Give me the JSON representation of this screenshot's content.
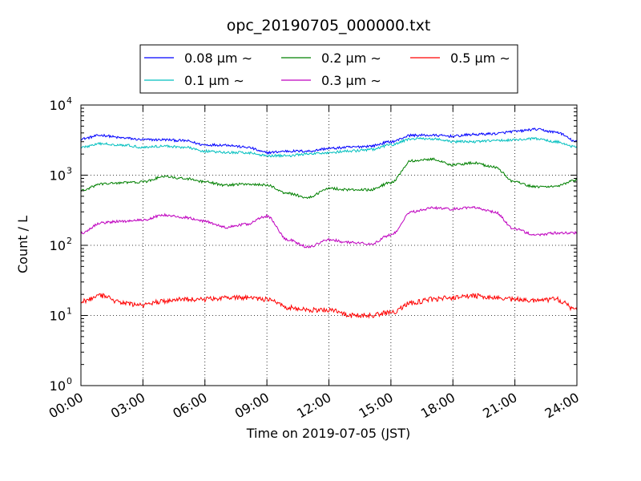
{
  "chart_data": {
    "type": "line",
    "title": "opc_20190705_000000.txt",
    "xlabel": "Time on 2019-07-05 (JST)",
    "ylabel": "Count / L",
    "yscale": "log",
    "ylim": [
      1,
      10000
    ],
    "grid": true,
    "legend_position": "top",
    "x_ticks": [
      "00:00",
      "03:00",
      "06:00",
      "09:00",
      "12:00",
      "15:00",
      "18:00",
      "21:00",
      "24:00"
    ],
    "y_ticks": [
      {
        "value": 1,
        "base": "10",
        "exp": "0"
      },
      {
        "value": 10,
        "base": "10",
        "exp": "1"
      },
      {
        "value": 100,
        "base": "10",
        "exp": "2"
      },
      {
        "value": 1000,
        "base": "10",
        "exp": "3"
      },
      {
        "value": 10000,
        "base": "10",
        "exp": "4"
      }
    ],
    "x_hours": [
      0,
      1,
      2,
      3,
      4,
      5,
      6,
      7,
      8,
      9,
      10,
      11,
      12,
      13,
      14,
      15,
      16,
      17,
      18,
      19,
      20,
      21,
      22,
      23,
      24
    ],
    "series": [
      {
        "name": "0.08 μm ∼",
        "color": "#0000ff",
        "values": [
          3300,
          3700,
          3400,
          3200,
          3200,
          3100,
          2700,
          2700,
          2500,
          2100,
          2200,
          2200,
          2400,
          2500,
          2600,
          3000,
          3700,
          3700,
          3600,
          3800,
          3900,
          4200,
          4500,
          4100,
          3000
        ]
      },
      {
        "name": "0.1 μm ∼",
        "color": "#00bfbf",
        "values": [
          2500,
          2800,
          2700,
          2500,
          2600,
          2500,
          2200,
          2100,
          2100,
          1900,
          1900,
          2000,
          2100,
          2200,
          2300,
          2700,
          3300,
          3300,
          3000,
          3000,
          3100,
          3200,
          3300,
          3000,
          2500
        ]
      },
      {
        "name": "0.2 μm ∼",
        "color": "#008000",
        "values": [
          600,
          750,
          780,
          800,
          950,
          900,
          800,
          720,
          750,
          720,
          550,
          480,
          650,
          620,
          620,
          780,
          1600,
          1700,
          1400,
          1500,
          1300,
          800,
          680,
          700,
          850
        ]
      },
      {
        "name": "0.3 μm ∼",
        "color": "#bf00bf",
        "values": [
          150,
          210,
          220,
          230,
          270,
          250,
          220,
          180,
          200,
          260,
          120,
          95,
          120,
          110,
          105,
          140,
          300,
          340,
          330,
          350,
          300,
          170,
          140,
          150,
          150
        ]
      },
      {
        "name": "0.5 μm ∼",
        "color": "#ff0000",
        "values": [
          16,
          19,
          15,
          14,
          16,
          17,
          17,
          18,
          18,
          17,
          13,
          12,
          12,
          10,
          10,
          11,
          15,
          17,
          18,
          19,
          18,
          17,
          16,
          17,
          12
        ]
      }
    ]
  }
}
